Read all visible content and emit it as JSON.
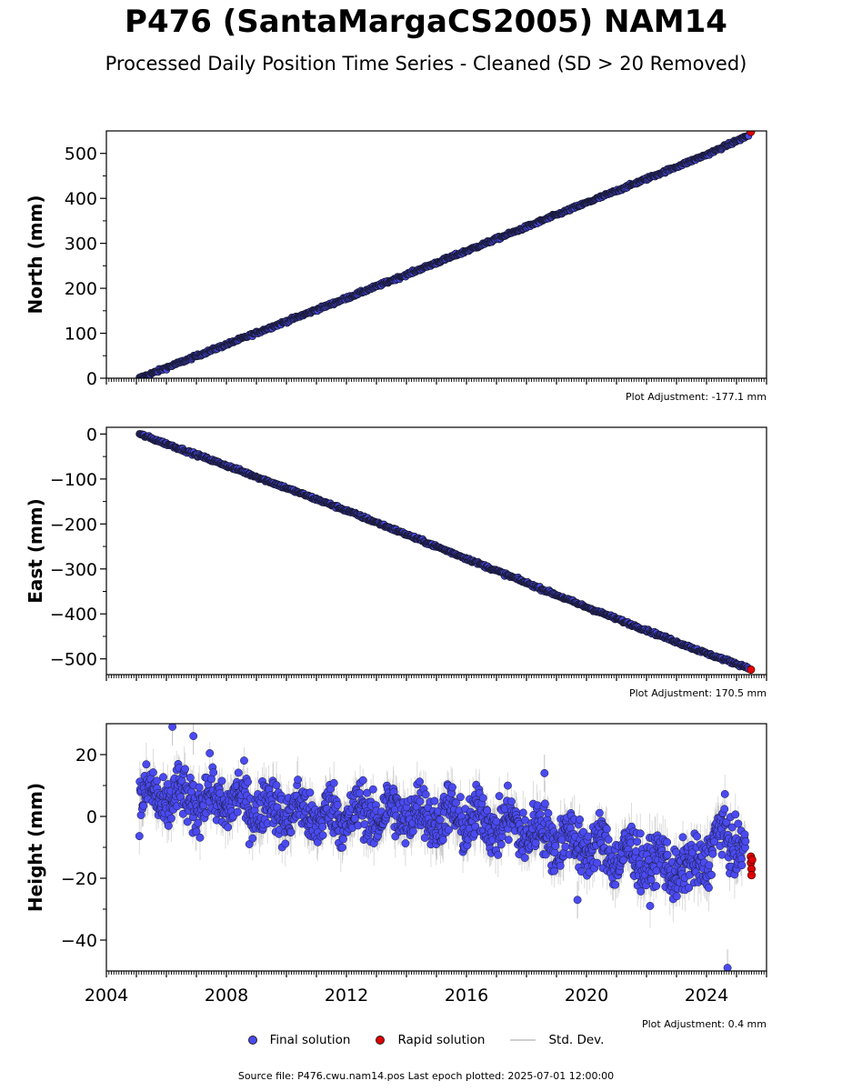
{
  "title": "P476 (SantaMargaCS2005) NAM14",
  "subtitle": "Processed Daily Position Time Series - Cleaned (SD > 20 Removed)",
  "legend": {
    "final": "Final solution",
    "rapid": "Rapid solution",
    "stddev": "Std. Dev."
  },
  "source_note": "Source file: P476.cwu.nam14.pos  Last epoch plotted: 2025-07-01 12:00:00",
  "colors": {
    "final": "#4a4af0",
    "rapid": "#e00000",
    "stddev": "#9a9a9a"
  },
  "chart_data": [
    {
      "type": "scatter",
      "ylabel": "North (mm)",
      "adjustment": "Plot Adjustment: -177.1 mm",
      "xlim": [
        2004.0,
        2026.0
      ],
      "ylim": [
        0,
        550
      ],
      "yticks": [
        0,
        100,
        200,
        300,
        400,
        500
      ],
      "ytick_labels": [
        "0",
        "100",
        "200",
        "300",
        "400",
        "500"
      ],
      "series": [
        {
          "kind": "final",
          "x": [
            2005.1,
            2008,
            2012,
            2016,
            2020,
            2024,
            2025.4
          ],
          "y": [
            0,
            75,
            178,
            283,
            390,
            497,
            540
          ]
        },
        {
          "kind": "rapid",
          "x": [
            2025.48
          ],
          "y": [
            548
          ]
        }
      ],
      "noise": 2.5
    },
    {
      "type": "scatter",
      "ylabel": "East (mm)",
      "adjustment": "Plot Adjustment: 170.5 mm",
      "xlim": [
        2004.0,
        2026.0
      ],
      "ylim": [
        -535,
        15
      ],
      "yticks": [
        0,
        -100,
        -200,
        -300,
        -400,
        -500
      ],
      "ytick_labels": [
        "0",
        "−100",
        "−200",
        "−300",
        "−400",
        "−500"
      ],
      "series": [
        {
          "kind": "final",
          "x": [
            2005.1,
            2008,
            2012,
            2016,
            2020,
            2024,
            2025.4
          ],
          "y": [
            0,
            -70,
            -170,
            -277,
            -385,
            -488,
            -520
          ]
        },
        {
          "kind": "rapid",
          "x": [
            2025.48
          ],
          "y": [
            -524
          ]
        }
      ],
      "noise": 2.5
    },
    {
      "type": "scatter",
      "ylabel": "Height (mm)",
      "adjustment": "Plot Adjustment: 0.4 mm",
      "xlim": [
        2004.0,
        2026.0
      ],
      "ylim": [
        -50,
        30
      ],
      "xticks": [
        2004,
        2008,
        2012,
        2016,
        2020,
        2024
      ],
      "xtick_labels": [
        "2004",
        "2008",
        "2012",
        "2016",
        "2020",
        "2024"
      ],
      "yticks": [
        20,
        0,
        -20,
        -40
      ],
      "ytick_labels": [
        "20",
        "0",
        "−20",
        "−40"
      ],
      "series": [
        {
          "kind": "final",
          "x": [
            2005.1,
            2008,
            2011,
            2014,
            2017,
            2019.5,
            2021,
            2023.5,
            2024.5,
            2025.3
          ],
          "y": [
            6,
            5,
            0,
            1,
            -2,
            -8,
            -12,
            -18,
            -6,
            -10
          ]
        },
        {
          "kind": "rapid",
          "x": [
            2025.48,
            2025.48,
            2025.5,
            2025.5,
            2025.52
          ],
          "y": [
            -13,
            -15,
            -17,
            -19,
            -14
          ]
        }
      ],
      "outliers": [
        {
          "x": 2006.2,
          "y": 29
        },
        {
          "x": 2006.9,
          "y": 26
        },
        {
          "x": 2018.6,
          "y": 14
        },
        {
          "x": 2019.7,
          "y": -27
        },
        {
          "x": 2024.7,
          "y": -49
        }
      ],
      "noise": 6
    }
  ]
}
